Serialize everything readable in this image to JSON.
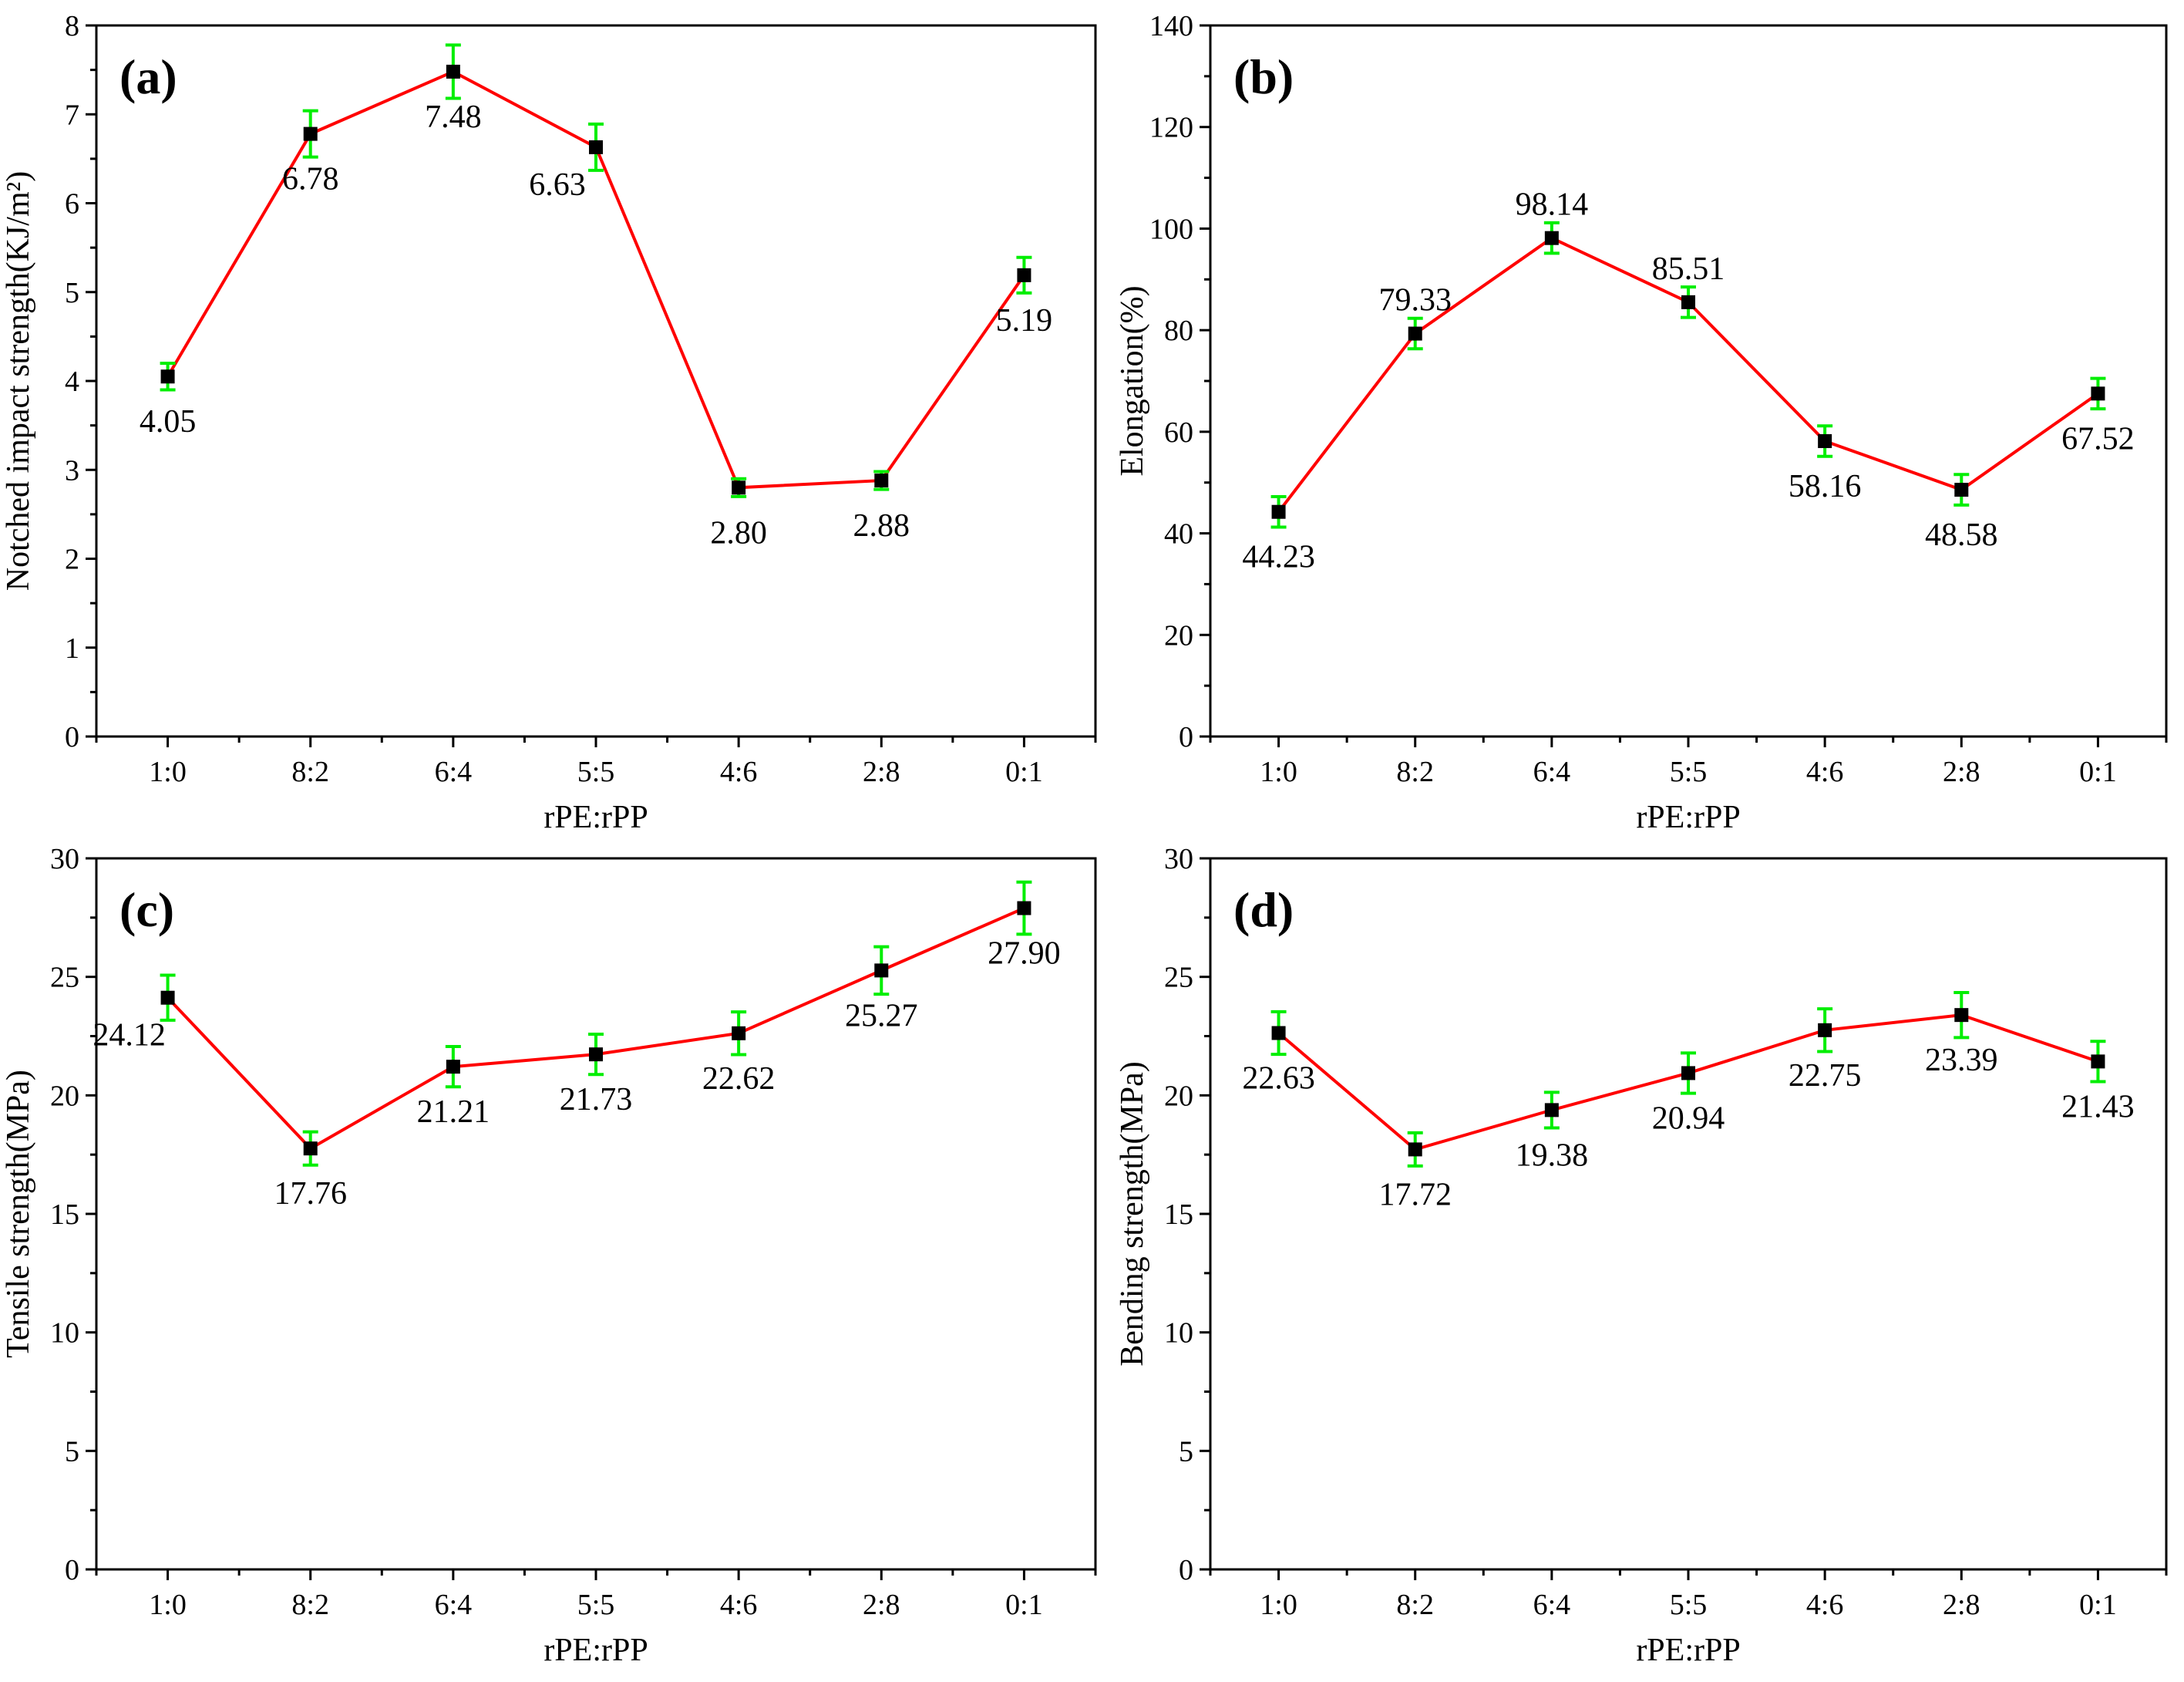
{
  "colors": {
    "line": "#ff0000",
    "marker": "#000000",
    "error_bar": "#00ee00",
    "axis": "#000000"
  },
  "chart_data": [
    {
      "type": "line",
      "panel": "(a)",
      "categories": [
        "1:0",
        "8:2",
        "6:4",
        "5:5",
        "4:6",
        "2:8",
        "0:1"
      ],
      "values": [
        4.05,
        6.78,
        7.48,
        6.63,
        2.8,
        2.88,
        5.19
      ],
      "labels": [
        "4.05",
        "6.78",
        "7.48",
        "6.63",
        "2.80",
        "2.88",
        "5.19"
      ],
      "errors": [
        0.15,
        0.26,
        0.3,
        0.26,
        0.1,
        0.1,
        0.2
      ],
      "label_pos": [
        "below",
        "below",
        "below",
        "below-left",
        "below",
        "below",
        "below"
      ],
      "ylim": [
        0,
        8
      ],
      "yticks": [
        0,
        1,
        2,
        3,
        4,
        5,
        6,
        7,
        8
      ],
      "ytick_labels": [
        "0",
        "1",
        "2",
        "3",
        "4",
        "5",
        "6",
        "7",
        "8"
      ],
      "xlabel": "rPE:rPP",
      "ylabel": "Notched impact strength(KJ/m²)",
      "grid": false
    },
    {
      "type": "line",
      "panel": "(b)",
      "categories": [
        "1:0",
        "8:2",
        "6:4",
        "5:5",
        "4:6",
        "2:8",
        "0:1"
      ],
      "values": [
        44.23,
        79.33,
        98.14,
        85.51,
        58.16,
        48.58,
        67.52
      ],
      "labels": [
        "44.23",
        "79.33",
        "98.14",
        "85.51",
        "58.16",
        "48.58",
        "67.52"
      ],
      "errors": [
        3,
        3,
        3,
        3,
        3,
        3,
        3
      ],
      "label_pos": [
        "below",
        "above",
        "above",
        "above",
        "below",
        "below",
        "below"
      ],
      "ylim": [
        0,
        140
      ],
      "yticks": [
        0,
        20,
        40,
        60,
        80,
        100,
        120,
        140
      ],
      "ytick_labels": [
        "0",
        "20",
        "40",
        "60",
        "80",
        "100",
        "120",
        "140"
      ],
      "xlabel": "rPE:rPP",
      "ylabel": "Elongation(%)",
      "grid": false
    },
    {
      "type": "line",
      "panel": "(c)",
      "categories": [
        "1:0",
        "8:2",
        "6:4",
        "5:5",
        "4:6",
        "2:8",
        "0:1"
      ],
      "values": [
        24.12,
        17.76,
        21.21,
        21.73,
        22.62,
        25.27,
        27.9
      ],
      "labels": [
        "24.12",
        "17.76",
        "21.21",
        "21.73",
        "22.62",
        "25.27",
        "27.90"
      ],
      "errors": [
        0.95,
        0.7,
        0.85,
        0.85,
        0.9,
        1.0,
        1.1
      ],
      "label_pos": [
        "below-left",
        "below",
        "below",
        "below",
        "below",
        "below",
        "below"
      ],
      "ylim": [
        0,
        30
      ],
      "yticks": [
        0,
        5,
        10,
        15,
        20,
        25,
        30
      ],
      "ytick_labels": [
        "0",
        "5",
        "10",
        "15",
        "20",
        "25",
        "30"
      ],
      "xlabel": "rPE:rPP",
      "ylabel": "Tensile strength(MPa)",
      "grid": false
    },
    {
      "type": "line",
      "panel": "(d)",
      "categories": [
        "1:0",
        "8:2",
        "6:4",
        "5:5",
        "4:6",
        "2:8",
        "0:1"
      ],
      "values": [
        22.63,
        17.72,
        19.38,
        20.94,
        22.75,
        23.39,
        21.43
      ],
      "labels": [
        "22.63",
        "17.72",
        "19.38",
        "20.94",
        "22.75",
        "23.39",
        "21.43"
      ],
      "errors": [
        0.9,
        0.7,
        0.75,
        0.85,
        0.9,
        0.95,
        0.85
      ],
      "label_pos": [
        "below",
        "below",
        "below",
        "below",
        "below",
        "below",
        "below"
      ],
      "ylim": [
        0,
        30
      ],
      "yticks": [
        0,
        5,
        10,
        15,
        20,
        25,
        30
      ],
      "ytick_labels": [
        "0",
        "5",
        "10",
        "15",
        "20",
        "25",
        "30"
      ],
      "xlabel": "rPE:rPP",
      "ylabel": "Bending strength(MPa)",
      "grid": false
    }
  ]
}
